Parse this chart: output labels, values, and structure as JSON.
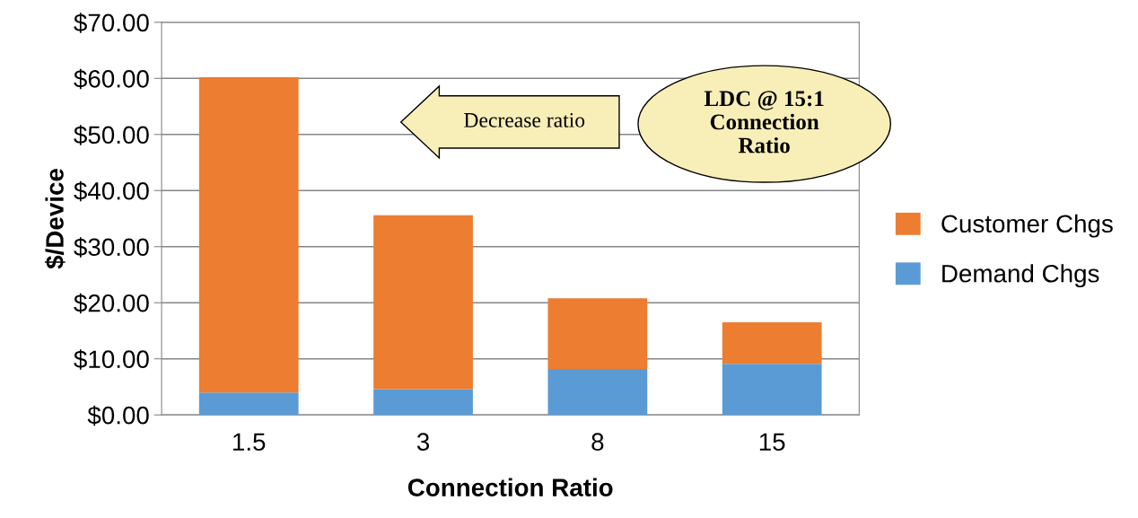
{
  "chart_data": {
    "type": "bar",
    "stacked": true,
    "xlabel": "Connection Ratio",
    "ylabel": "$/Device",
    "categories": [
      "1.5",
      "3",
      "8",
      "15"
    ],
    "series": [
      {
        "name": "Demand Chgs",
        "color": "#5b9bd5",
        "values": [
          4.0,
          4.6,
          8.2,
          9.1
        ]
      },
      {
        "name": "Customer Chgs",
        "color": "#ed7d31",
        "values": [
          56.2,
          31.0,
          12.6,
          7.4
        ]
      }
    ],
    "ylim": [
      0,
      70
    ],
    "yticks": [
      {
        "value": 0,
        "label": "$0.00"
      },
      {
        "value": 10,
        "label": "$10.00"
      },
      {
        "value": 20,
        "label": "$20.00"
      },
      {
        "value": 30,
        "label": "$30.00"
      },
      {
        "value": 40,
        "label": "$40.00"
      },
      {
        "value": 50,
        "label": "$50.00"
      },
      {
        "value": 60,
        "label": "$60.00"
      },
      {
        "value": 70,
        "label": "$70.00"
      }
    ],
    "grid": "y",
    "legend": "right",
    "annotations": [
      "Decrease ratio",
      "LDC @ 15:1\nConnection\nRatio"
    ]
  }
}
